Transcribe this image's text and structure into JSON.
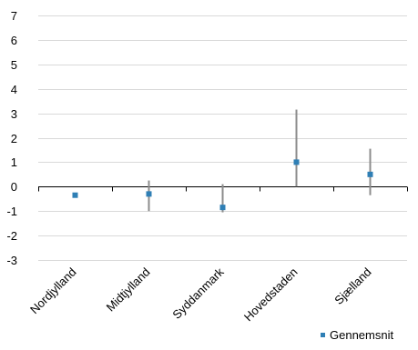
{
  "chart_data": {
    "type": "scatter",
    "title": "",
    "xlabel": "",
    "ylabel": "",
    "categories": [
      "Nordjylland",
      "Midtjylland",
      "Syddanmark",
      "Hovedstaden",
      "Sjælland"
    ],
    "ylim": [
      -3,
      7
    ],
    "yticks": [
      -3,
      -2,
      -1,
      0,
      1,
      2,
      3,
      4,
      5,
      6,
      7
    ],
    "grid": "horizontal",
    "legend_position": "bottom-right",
    "series": [
      {
        "name": "Gennemsnit",
        "values": [
          -0.35,
          -0.3,
          -0.85,
          1.0,
          0.5
        ],
        "error_low": [
          -0.35,
          -1.0,
          -1.05,
          0.0,
          -0.35
        ],
        "error_high": [
          -0.35,
          0.25,
          0.1,
          3.15,
          1.55
        ]
      }
    ],
    "colors": {
      "marker": "#2f7fb5",
      "errorbar": "#8c8c8c",
      "grid": "#d9d9d9",
      "axis": "#000000"
    }
  }
}
